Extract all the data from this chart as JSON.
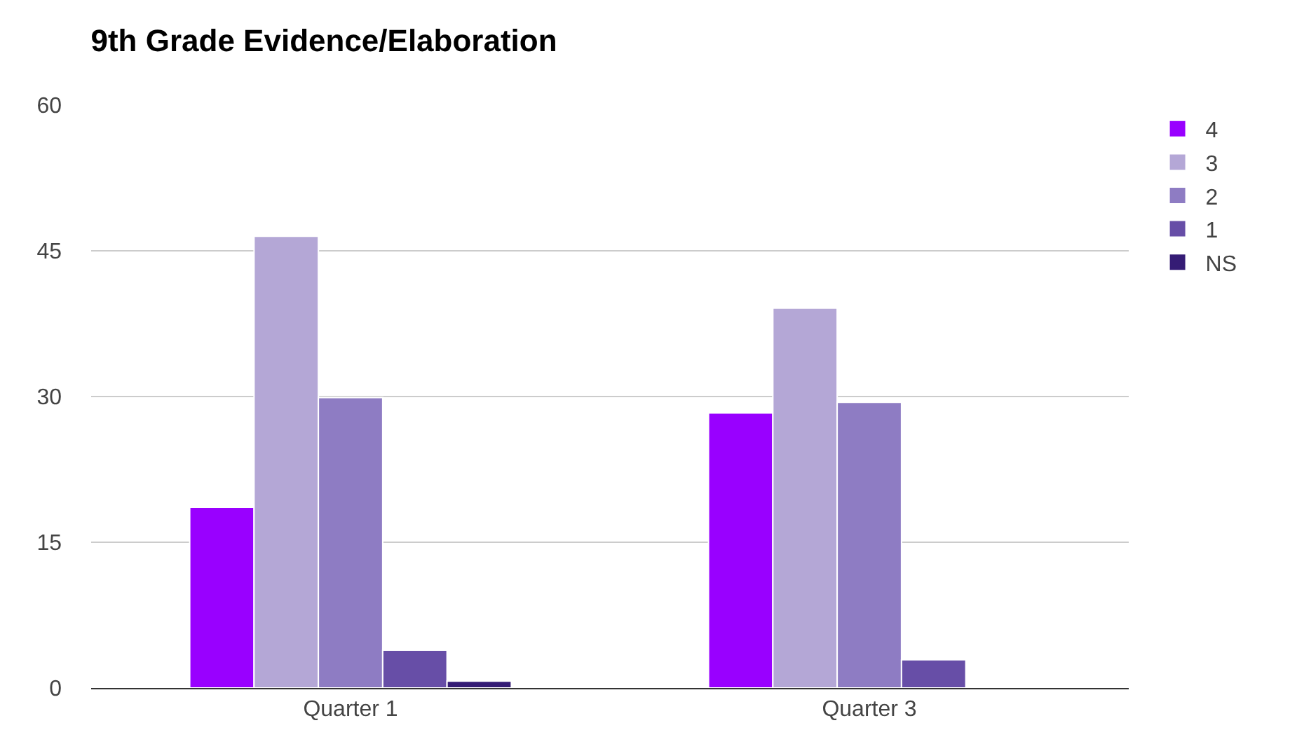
{
  "chart_data": {
    "type": "bar",
    "title": "9th Grade Evidence/Elaboration",
    "categories": [
      "Quarter 1",
      "Quarter 3"
    ],
    "series": [
      {
        "name": "4",
        "color": "#9900ff",
        "values": [
          18.6,
          28.3
        ]
      },
      {
        "name": "3",
        "color": "#b4a7d6",
        "values": [
          46.5,
          39.1
        ]
      },
      {
        "name": "2",
        "color": "#8e7cc3",
        "values": [
          29.9,
          29.4
        ]
      },
      {
        "name": "1",
        "color": "#674ea7",
        "values": [
          3.9,
          2.9
        ]
      },
      {
        "name": "NS",
        "color": "#351c75",
        "values": [
          0.7,
          null
        ]
      }
    ],
    "ylim": [
      0,
      60
    ],
    "yticks": [
      0,
      15,
      30,
      45,
      60
    ],
    "grid": "y",
    "legend": "top right"
  }
}
